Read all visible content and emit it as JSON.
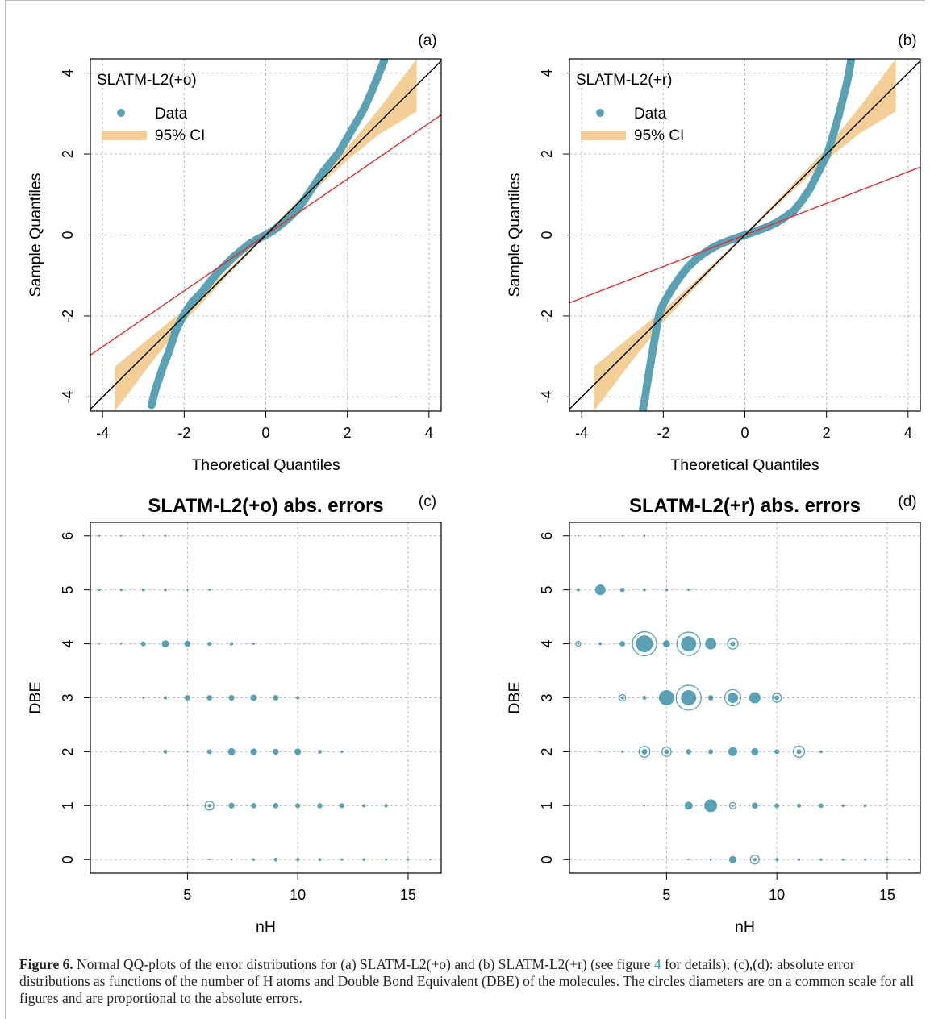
{
  "colors": {
    "data": "#5aa1b3",
    "ci": "#f3cf97",
    "fit_line": "#e03030",
    "ref_line": "#000000",
    "grid": "#bfbfbf"
  },
  "chart_data": [
    {
      "panel": "(a)",
      "type": "scatter",
      "subtype": "qq-plot",
      "xlabel": "Theoretical Quantiles",
      "ylabel": "Sample Quantiles",
      "xlim": [
        -4.3,
        4.3
      ],
      "ylim": [
        -4.35,
        4.35
      ],
      "xticks": [
        -4,
        -2,
        0,
        2,
        4
      ],
      "yticks": [
        -4,
        -2,
        0,
        2,
        4
      ],
      "grid": true,
      "legend": {
        "title": "SLATM-L2(+o)",
        "position": "top-left",
        "entries": [
          {
            "label": "Data",
            "symbol": "point"
          },
          {
            "label": "95% CI",
            "symbol": "band"
          }
        ]
      },
      "reference_line": {
        "slope": 1.0,
        "intercept": 0.0
      },
      "fit_line": {
        "slope": 0.69,
        "intercept": 0.0
      },
      "ci_band": {
        "x": [
          -3.7,
          -2.8,
          -2.0,
          -1.0,
          0.0,
          1.0,
          2.0,
          2.8,
          3.7
        ],
        "lower": [
          -4.35,
          -3.15,
          -2.15,
          -1.07,
          -0.03,
          0.93,
          1.85,
          2.5,
          3.05
        ],
        "upper": [
          -3.25,
          -2.5,
          -1.85,
          -0.93,
          0.03,
          1.07,
          2.15,
          3.15,
          4.35
        ]
      },
      "series": [
        {
          "x": [
            -2.8,
            -2.7,
            -2.6,
            -2.5,
            -2.4,
            -2.3,
            -2.2,
            -2.1,
            -2.0,
            -1.8,
            -1.6,
            -1.4,
            -1.2,
            -1.0,
            -0.8,
            -0.6,
            -0.4,
            -0.2,
            0.0,
            0.2,
            0.4,
            0.6,
            0.8,
            1.0,
            1.2,
            1.4,
            1.6,
            1.8,
            2.0,
            2.2,
            2.4,
            2.6,
            2.7,
            2.8,
            2.9
          ],
          "y": [
            -4.2,
            -3.8,
            -3.5,
            -3.2,
            -2.95,
            -2.65,
            -2.35,
            -2.15,
            -1.95,
            -1.65,
            -1.45,
            -1.2,
            -0.95,
            -0.75,
            -0.55,
            -0.38,
            -0.22,
            -0.1,
            0.0,
            0.12,
            0.28,
            0.45,
            0.65,
            0.95,
            1.25,
            1.55,
            1.8,
            2.05,
            2.4,
            2.75,
            3.1,
            3.55,
            3.8,
            4.05,
            4.3
          ]
        }
      ]
    },
    {
      "panel": "(b)",
      "type": "scatter",
      "subtype": "qq-plot",
      "xlabel": "Theoretical Quantiles",
      "ylabel": "Sample Quantiles",
      "xlim": [
        -4.3,
        4.3
      ],
      "ylim": [
        -4.35,
        4.35
      ],
      "xticks": [
        -4,
        -2,
        0,
        2,
        4
      ],
      "yticks": [
        -4,
        -2,
        0,
        2,
        4
      ],
      "grid": true,
      "legend": {
        "title": "SLATM-L2(+r)",
        "position": "top-left",
        "entries": [
          {
            "label": "Data",
            "symbol": "point"
          },
          {
            "label": "95% CI",
            "symbol": "band"
          }
        ]
      },
      "reference_line": {
        "slope": 1.0,
        "intercept": 0.0
      },
      "fit_line": {
        "slope": 0.39,
        "intercept": 0.0
      },
      "ci_band": {
        "x": [
          -3.7,
          -2.8,
          -2.0,
          -1.0,
          0.0,
          1.0,
          2.0,
          2.8,
          3.7
        ],
        "lower": [
          -4.35,
          -3.15,
          -2.15,
          -1.07,
          -0.03,
          0.93,
          1.85,
          2.5,
          3.05
        ],
        "upper": [
          -3.25,
          -2.5,
          -1.85,
          -0.93,
          0.03,
          1.07,
          2.15,
          3.15,
          4.35
        ]
      },
      "series": [
        {
          "x": [
            -2.5,
            -2.45,
            -2.4,
            -2.35,
            -2.3,
            -2.25,
            -2.2,
            -2.15,
            -2.1,
            -2.0,
            -1.8,
            -1.6,
            -1.4,
            -1.2,
            -1.0,
            -0.8,
            -0.6,
            -0.4,
            -0.2,
            0.0,
            0.2,
            0.4,
            0.6,
            0.8,
            1.0,
            1.2,
            1.4,
            1.6,
            1.8,
            2.0,
            2.1,
            2.2,
            2.3,
            2.4,
            2.5,
            2.55,
            2.6
          ],
          "y": [
            -4.3,
            -4.05,
            -3.7,
            -3.4,
            -3.1,
            -2.8,
            -2.5,
            -2.2,
            -1.95,
            -1.7,
            -1.35,
            -1.05,
            -0.8,
            -0.6,
            -0.45,
            -0.32,
            -0.22,
            -0.14,
            -0.07,
            0.0,
            0.07,
            0.14,
            0.22,
            0.32,
            0.45,
            0.6,
            0.85,
            1.15,
            1.55,
            1.95,
            2.25,
            2.6,
            2.95,
            3.35,
            3.75,
            4.0,
            4.3
          ]
        }
      ]
    },
    {
      "panel": "(c)",
      "type": "scatter",
      "subtype": "bubble",
      "title": "SLATM-L2(+o) abs. errors",
      "xlabel": "nH",
      "ylabel": "DBE",
      "xlim": [
        0.6,
        16.5
      ],
      "ylim": [
        -0.25,
        6.25
      ],
      "xticks": [
        5,
        10,
        15
      ],
      "yticks": [
        0,
        1,
        2,
        3,
        4,
        5,
        6
      ],
      "grid": true,
      "note": "r_outer = mean-ish error size (radius), r_inner > 0 marks a hollow ring with inner dot",
      "points": [
        {
          "x": 1,
          "y": 6,
          "r": 1.2
        },
        {
          "x": 2,
          "y": 6,
          "r": 1.2
        },
        {
          "x": 3,
          "y": 6,
          "r": 1.2
        },
        {
          "x": 4,
          "y": 6,
          "r": 1.3
        },
        {
          "x": 1,
          "y": 5,
          "r": 1.6
        },
        {
          "x": 2,
          "y": 5,
          "r": 1.6
        },
        {
          "x": 3,
          "y": 5,
          "r": 1.9
        },
        {
          "x": 4,
          "y": 5,
          "r": 1.8
        },
        {
          "x": 5,
          "y": 5,
          "r": 1.3
        },
        {
          "x": 6,
          "y": 5,
          "r": 1.3
        },
        {
          "x": 1,
          "y": 4,
          "r": 0.9
        },
        {
          "x": 2,
          "y": 4,
          "r": 1.2
        },
        {
          "x": 3,
          "y": 4,
          "r": 3.0
        },
        {
          "x": 4,
          "y": 4,
          "r": 4.5
        },
        {
          "x": 5,
          "y": 4,
          "r": 3.8
        },
        {
          "x": 6,
          "y": 4,
          "r": 2.6
        },
        {
          "x": 7,
          "y": 4,
          "r": 2.2
        },
        {
          "x": 8,
          "y": 4,
          "r": 1.4
        },
        {
          "x": 2,
          "y": 3,
          "r": 0.8
        },
        {
          "x": 3,
          "y": 3,
          "r": 1.3
        },
        {
          "x": 4,
          "y": 3,
          "r": 2.1
        },
        {
          "x": 5,
          "y": 3,
          "r": 3.5
        },
        {
          "x": 6,
          "y": 3,
          "r": 3.4
        },
        {
          "x": 7,
          "y": 3,
          "r": 3.6
        },
        {
          "x": 8,
          "y": 3,
          "r": 4.0
        },
        {
          "x": 9,
          "y": 3,
          "r": 3.5
        },
        {
          "x": 10,
          "y": 3,
          "r": 2.2
        },
        {
          "x": 2,
          "y": 2,
          "r": 0.8
        },
        {
          "x": 3,
          "y": 2,
          "r": 0.9
        },
        {
          "x": 4,
          "y": 2,
          "r": 2.4
        },
        {
          "x": 5,
          "y": 2,
          "r": 1.2
        },
        {
          "x": 6,
          "y": 2,
          "r": 3.0
        },
        {
          "x": 7,
          "y": 2,
          "r": 4.5
        },
        {
          "x": 8,
          "y": 2,
          "r": 4.1
        },
        {
          "x": 9,
          "y": 2,
          "r": 3.7
        },
        {
          "x": 10,
          "y": 2,
          "r": 4.1
        },
        {
          "x": 11,
          "y": 2,
          "r": 2.4
        },
        {
          "x": 12,
          "y": 2,
          "r": 1.6
        },
        {
          "x": 4,
          "y": 1,
          "r": 0.9
        },
        {
          "x": 5,
          "y": 1,
          "r": 1.0
        },
        {
          "x": 6,
          "y": 1,
          "r": 5.5,
          "r_inner": 2.0
        },
        {
          "x": 7,
          "y": 1,
          "r": 3.6
        },
        {
          "x": 8,
          "y": 1,
          "r": 3.3
        },
        {
          "x": 9,
          "y": 1,
          "r": 3.4
        },
        {
          "x": 10,
          "y": 1,
          "r": 3.1
        },
        {
          "x": 11,
          "y": 1,
          "r": 3.2
        },
        {
          "x": 12,
          "y": 1,
          "r": 3.1
        },
        {
          "x": 13,
          "y": 1,
          "r": 2.1
        },
        {
          "x": 14,
          "y": 1,
          "r": 2.2
        },
        {
          "x": 4,
          "y": 0,
          "r": 0.8
        },
        {
          "x": 5,
          "y": 0,
          "r": 0.9
        },
        {
          "x": 6,
          "y": 0,
          "r": 1.0
        },
        {
          "x": 7,
          "y": 0,
          "r": 1.2
        },
        {
          "x": 8,
          "y": 0,
          "r": 1.6
        },
        {
          "x": 9,
          "y": 0,
          "r": 2.3
        },
        {
          "x": 10,
          "y": 0,
          "r": 2.1
        },
        {
          "x": 11,
          "y": 0,
          "r": 1.9
        },
        {
          "x": 12,
          "y": 0,
          "r": 1.6
        },
        {
          "x": 13,
          "y": 0,
          "r": 1.6
        },
        {
          "x": 14,
          "y": 0,
          "r": 1.4
        },
        {
          "x": 15,
          "y": 0,
          "r": 1.4
        },
        {
          "x": 16,
          "y": 0,
          "r": 1.1
        }
      ]
    },
    {
      "panel": "(d)",
      "type": "scatter",
      "subtype": "bubble",
      "title": "SLATM-L2(+r) abs. errors",
      "xlabel": "nH",
      "ylabel": "DBE",
      "xlim": [
        0.6,
        16.5
      ],
      "ylim": [
        -0.25,
        6.25
      ],
      "xticks": [
        5,
        10,
        15
      ],
      "yticks": [
        0,
        1,
        2,
        3,
        4,
        5,
        6
      ],
      "grid": true,
      "points": [
        {
          "x": 1,
          "y": 6,
          "r": 1.0
        },
        {
          "x": 2,
          "y": 6,
          "r": 1.0
        },
        {
          "x": 3,
          "y": 6,
          "r": 1.0
        },
        {
          "x": 4,
          "y": 6,
          "r": 1.3
        },
        {
          "x": 1,
          "y": 5,
          "r": 2.0
        },
        {
          "x": 2,
          "y": 5,
          "r": 6.5
        },
        {
          "x": 3,
          "y": 5,
          "r": 2.8
        },
        {
          "x": 4,
          "y": 5,
          "r": 1.8
        },
        {
          "x": 5,
          "y": 5,
          "r": 1.7
        },
        {
          "x": 6,
          "y": 5,
          "r": 1.5
        },
        {
          "x": 1,
          "y": 4,
          "r": 3.0,
          "r_inner": 1.2
        },
        {
          "x": 2,
          "y": 4,
          "r": 1.9
        },
        {
          "x": 3,
          "y": 4,
          "r": 3.5
        },
        {
          "x": 4,
          "y": 4,
          "r": 15.0,
          "r_inner": 10.5
        },
        {
          "x": 5,
          "y": 4,
          "r": 4.5
        },
        {
          "x": 6,
          "y": 4,
          "r": 14.5,
          "r_inner": 9.5
        },
        {
          "x": 7,
          "y": 4,
          "r": 7.0
        },
        {
          "x": 8,
          "y": 4,
          "r": 6.5,
          "r_inner": 3.0
        },
        {
          "x": 2,
          "y": 3,
          "r": 0.9
        },
        {
          "x": 3,
          "y": 3,
          "r": 4.0,
          "r_inner": 2.0
        },
        {
          "x": 4,
          "y": 3,
          "r": 2.5
        },
        {
          "x": 5,
          "y": 3,
          "r": 9.5
        },
        {
          "x": 6,
          "y": 3,
          "r": 15.5,
          "r_inner": 9.5
        },
        {
          "x": 7,
          "y": 3,
          "r": 3.3
        },
        {
          "x": 8,
          "y": 3,
          "r": 10.0,
          "r_inner": 6.5
        },
        {
          "x": 9,
          "y": 3,
          "r": 7.0
        },
        {
          "x": 10,
          "y": 3,
          "r": 5.5,
          "r_inner": 3.0
        },
        {
          "x": 2,
          "y": 2,
          "r": 1.0
        },
        {
          "x": 3,
          "y": 2,
          "r": 1.5
        },
        {
          "x": 4,
          "y": 2,
          "r": 6.8,
          "r_inner": 3.5
        },
        {
          "x": 5,
          "y": 2,
          "r": 5.8,
          "r_inner": 3.0
        },
        {
          "x": 6,
          "y": 2,
          "r": 3.3
        },
        {
          "x": 7,
          "y": 2,
          "r": 3.0
        },
        {
          "x": 8,
          "y": 2,
          "r": 5.5
        },
        {
          "x": 9,
          "y": 2,
          "r": 4.5
        },
        {
          "x": 10,
          "y": 2,
          "r": 3.0
        },
        {
          "x": 11,
          "y": 2,
          "r": 7.0,
          "r_inner": 3.0
        },
        {
          "x": 12,
          "y": 2,
          "r": 1.8
        },
        {
          "x": 4,
          "y": 1,
          "r": 1.0
        },
        {
          "x": 5,
          "y": 1,
          "r": 1.0
        },
        {
          "x": 6,
          "y": 1,
          "r": 5.0
        },
        {
          "x": 7,
          "y": 1,
          "r": 8.0
        },
        {
          "x": 8,
          "y": 1,
          "r": 4.0,
          "r_inner": 1.5
        },
        {
          "x": 9,
          "y": 1,
          "r": 3.8
        },
        {
          "x": 10,
          "y": 1,
          "r": 3.0
        },
        {
          "x": 11,
          "y": 1,
          "r": 2.6
        },
        {
          "x": 12,
          "y": 1,
          "r": 2.8
        },
        {
          "x": 13,
          "y": 1,
          "r": 1.7
        },
        {
          "x": 14,
          "y": 1,
          "r": 1.9
        },
        {
          "x": 6,
          "y": 0,
          "r": 1.0
        },
        {
          "x": 7,
          "y": 0,
          "r": 1.3
        },
        {
          "x": 8,
          "y": 0,
          "r": 4.5
        },
        {
          "x": 9,
          "y": 0,
          "r": 5.5,
          "r_inner": 2.0
        },
        {
          "x": 10,
          "y": 0,
          "r": 2.0
        },
        {
          "x": 11,
          "y": 0,
          "r": 1.7
        },
        {
          "x": 12,
          "y": 0,
          "r": 1.6
        },
        {
          "x": 13,
          "y": 0,
          "r": 1.4
        },
        {
          "x": 14,
          "y": 0,
          "r": 1.5
        },
        {
          "x": 15,
          "y": 0,
          "r": 1.3
        },
        {
          "x": 16,
          "y": 0,
          "r": 1.1
        }
      ]
    }
  ],
  "caption": {
    "label": "Figure 6.",
    "part1": " Normal QQ-plots of the error distributions for (a) SLATM-L2(+o) and (b) SLATM-L2(+r) (see figure ",
    "ref": "4",
    "part2": " for details); (c),(d): absolute error distributions as functions of the number of H atoms and Double Bond Equivalent (DBE) of the molecules. The circles diameters are on a common scale for all figures and are proportional to the absolute errors."
  }
}
